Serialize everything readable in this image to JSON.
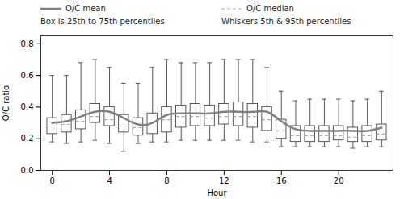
{
  "chart_data": {
    "type": "box",
    "xlabel": "Hour",
    "ylabel": "O/C ratio",
    "x": [
      0,
      1,
      2,
      3,
      4,
      5,
      6,
      7,
      8,
      9,
      10,
      11,
      12,
      13,
      14,
      15,
      16,
      17,
      18,
      19,
      20,
      21,
      22,
      23
    ],
    "xlim": [
      -0.8,
      23.8
    ],
    "xticks": [
      0,
      4,
      8,
      12,
      16,
      20
    ],
    "ylim": [
      0.0,
      0.85
    ],
    "yticks": [
      {
        "value": 0.0,
        "label": "0.0"
      },
      0.2,
      0.4,
      0.6,
      0.8
    ],
    "legend": "top",
    "series": [
      {
        "name": "O/C mean",
        "type": "line",
        "color": "#808080",
        "values": [
          0.3,
          0.31,
          0.34,
          0.37,
          0.37,
          0.33,
          0.29,
          0.3,
          0.35,
          0.36,
          0.36,
          0.36,
          0.37,
          0.37,
          0.37,
          0.37,
          0.31,
          0.26,
          0.25,
          0.25,
          0.25,
          0.25,
          0.25,
          0.27
        ]
      },
      {
        "name": "O/C median",
        "type": "box",
        "color": "#ffffff",
        "edge_color": "#555555",
        "whisker_color": "#555555",
        "median_color": "#aaaaaa",
        "line_style": "dashed",
        "p5": [
          0.18,
          0.17,
          0.18,
          0.19,
          0.17,
          0.12,
          0.17,
          0.18,
          0.18,
          0.19,
          0.19,
          0.19,
          0.19,
          0.19,
          0.18,
          0.18,
          0.15,
          0.15,
          0.15,
          0.15,
          0.15,
          0.14,
          0.15,
          0.15
        ],
        "q1": [
          0.23,
          0.24,
          0.26,
          0.3,
          0.28,
          0.24,
          0.22,
          0.23,
          0.24,
          0.27,
          0.28,
          0.28,
          0.29,
          0.28,
          0.27,
          0.25,
          0.2,
          0.18,
          0.18,
          0.18,
          0.19,
          0.18,
          0.18,
          0.19
        ],
        "median": [
          0.28,
          0.29,
          0.31,
          0.34,
          0.32,
          0.28,
          0.27,
          0.28,
          0.32,
          0.34,
          0.34,
          0.33,
          0.34,
          0.34,
          0.34,
          0.32,
          0.25,
          0.22,
          0.22,
          0.22,
          0.22,
          0.21,
          0.22,
          0.23
        ],
        "q3": [
          0.33,
          0.35,
          0.38,
          0.42,
          0.4,
          0.35,
          0.33,
          0.36,
          0.4,
          0.41,
          0.42,
          0.41,
          0.42,
          0.43,
          0.42,
          0.4,
          0.32,
          0.28,
          0.28,
          0.28,
          0.28,
          0.27,
          0.28,
          0.29
        ],
        "p95": [
          0.6,
          0.6,
          0.68,
          0.7,
          0.65,
          0.55,
          0.55,
          0.65,
          0.7,
          0.68,
          0.68,
          0.68,
          0.7,
          0.7,
          0.7,
          0.65,
          0.5,
          0.44,
          0.45,
          0.45,
          0.45,
          0.44,
          0.45,
          0.5
        ]
      }
    ],
    "annotations": [
      "Box is 25th to 75th percentiles",
      "Whiskers 5th & 95th percentiles"
    ]
  }
}
